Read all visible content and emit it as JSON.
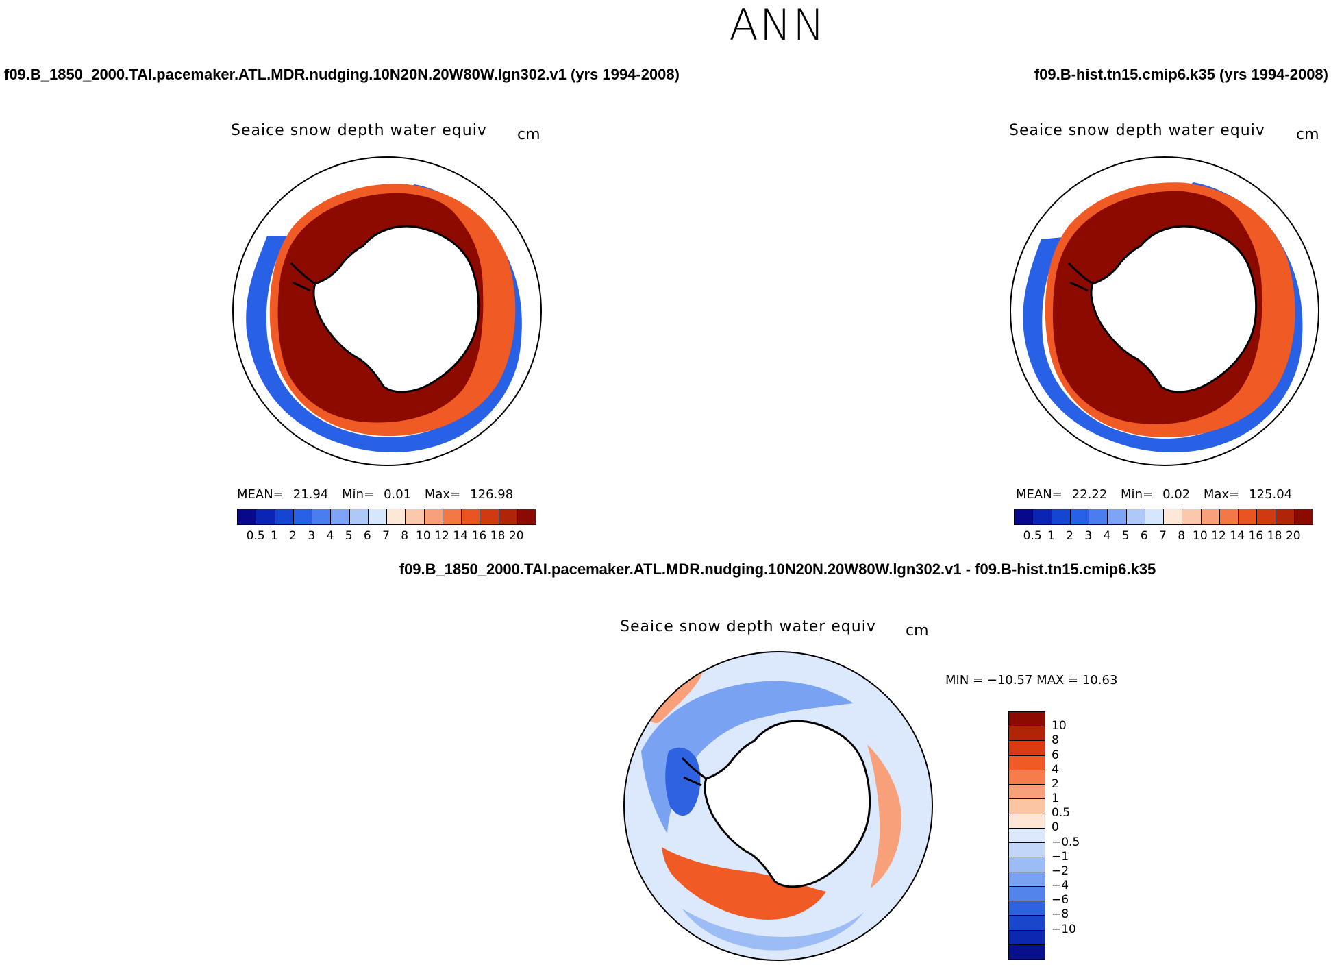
{
  "title": "ANN",
  "panels": [
    {
      "case": "f09.B_1850_2000.TAI.pacemaker.ATL.MDR.nudging.10N20N.20W80W.lgn302.v1 (yrs 1994-2008)",
      "variable": "Seaice snow depth water equiv",
      "units": "cm",
      "mean_label": "MEAN=",
      "mean": "21.94",
      "min_label": "Min=",
      "min": "0.01",
      "max_label": "Max=",
      "max": "126.98"
    },
    {
      "case": "f09.B-hist.tn15.cmip6.k35 (yrs 1994-2008)",
      "variable": "Seaice snow depth water equiv",
      "units": "cm",
      "mean_label": "MEAN=",
      "mean": "22.22",
      "min_label": "Min=",
      "min": "0.02",
      "max_label": "Max=",
      "max": "125.04"
    }
  ],
  "diff_panel": {
    "case": "f09.B_1850_2000.TAI.pacemaker.ATL.MDR.nudging.10N20N.20W80W.lgn302.v1 - f09.B-hist.tn15.cmip6.k35",
    "variable": "Seaice snow depth water equiv",
    "units": "cm",
    "minmax": "MIN = −10.57 MAX =   10.63"
  },
  "colors": {
    "abs_scale": [
      "#08088c",
      "#0a24b4",
      "#1446d2",
      "#2860e6",
      "#4a7ef0",
      "#7ea4f6",
      "#aec8f8",
      "#d6e6fc",
      "#fde8d8",
      "#fbc8ac",
      "#f8a07a",
      "#f47846",
      "#ea5420",
      "#d03a10",
      "#b02408",
      "#8c0a00"
    ],
    "diff_scale": [
      "#8c0a00",
      "#b02408",
      "#d83c10",
      "#f05a24",
      "#f67c4a",
      "#f8a07a",
      "#fbc4a2",
      "#fde6d6",
      "#dce8fc",
      "#c2d6fa",
      "#9cbcf6",
      "#7aa2f2",
      "#5284ec",
      "#2e62e0",
      "#1a46cc",
      "#0c28b0",
      "#08108c"
    ],
    "ice_red": "#8c0a00",
    "land": "#ffffff"
  },
  "chart_data": [
    {
      "type": "heatmap",
      "projection": "south-polar-stereographic",
      "title": "Seaice snow depth water equiv",
      "units": "cm",
      "colorbar_levels": [
        "0.5",
        "1",
        "2",
        "3",
        "4",
        "5",
        "6",
        "7",
        "8",
        "10",
        "12",
        "14",
        "16",
        "18",
        "20"
      ],
      "stats": {
        "mean": 21.94,
        "min": 0.01,
        "max": 126.98
      }
    },
    {
      "type": "heatmap",
      "projection": "south-polar-stereographic",
      "title": "Seaice snow depth water equiv",
      "units": "cm",
      "colorbar_levels": [
        "0.5",
        "1",
        "2",
        "3",
        "4",
        "5",
        "6",
        "7",
        "8",
        "10",
        "12",
        "14",
        "16",
        "18",
        "20"
      ],
      "stats": {
        "mean": 22.22,
        "min": 0.02,
        "max": 125.04
      }
    },
    {
      "type": "heatmap",
      "projection": "south-polar-stereographic",
      "title": "Seaice snow depth water equiv",
      "units": "cm",
      "colorbar_levels": [
        "10",
        "8",
        "6",
        "4",
        "2",
        "1",
        "0.5",
        "0",
        "−0.5",
        "−1",
        "−2",
        "−4",
        "−6",
        "−8",
        "−10"
      ],
      "stats": {
        "min": -10.57,
        "max": 10.63
      }
    }
  ]
}
